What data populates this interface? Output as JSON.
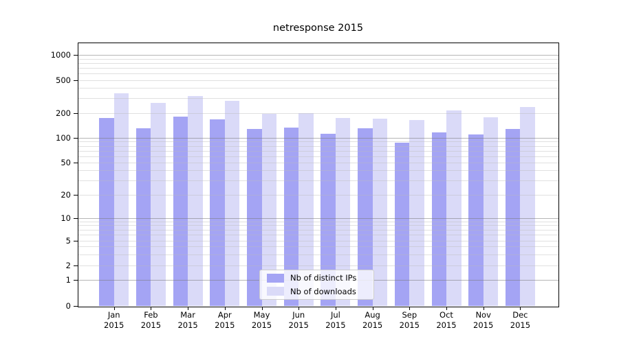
{
  "figure": {
    "title": "netresponse 2015",
    "background": "#ffffff",
    "spine_color": "#000000"
  },
  "legend": {
    "items": [
      {
        "label": "Nb of distinct IPs",
        "color": "#a4a4f4"
      },
      {
        "label": "Nb of downloads",
        "color": "#dadaf8"
      }
    ]
  },
  "y_axis": {
    "tick_labels": [
      "1000",
      "500",
      "200",
      "100",
      "50",
      "20",
      "10",
      "5",
      "2",
      "1",
      "0"
    ],
    "tick_values": [
      1000,
      500,
      200,
      100,
      50,
      20,
      10,
      5,
      2,
      1,
      0
    ],
    "major_gridline_values": [
      1,
      10,
      100,
      1000
    ],
    "minor_gridline_values": [
      2,
      3,
      4,
      5,
      6,
      7,
      8,
      9,
      20,
      30,
      40,
      50,
      60,
      70,
      80,
      90,
      200,
      300,
      400,
      500,
      600,
      700,
      800,
      900
    ]
  },
  "x_axis": {
    "months": [
      "Jan",
      "Feb",
      "Mar",
      "Apr",
      "May",
      "Jun",
      "Jul",
      "Aug",
      "Sep",
      "Oct",
      "Nov",
      "Dec"
    ],
    "year": "2015"
  },
  "chart_data": {
    "type": "bar",
    "title": "netresponse 2015",
    "categories": [
      "Jan 2015",
      "Feb 2015",
      "Mar 2015",
      "Apr 2015",
      "May 2015",
      "Jun 2015",
      "Jul 2015",
      "Aug 2015",
      "Sep 2015",
      "Oct 2015",
      "Nov 2015",
      "Dec 2015"
    ],
    "series": [
      {
        "name": "Nb of distinct IPs",
        "color": "#a4a4f4",
        "values": [
          174,
          131,
          181,
          166,
          127,
          132,
          112,
          131,
          87,
          116,
          110,
          129
        ]
      },
      {
        "name": "Nb of downloads",
        "color": "#dadaf8",
        "values": [
          345,
          266,
          321,
          278,
          196,
          199,
          175,
          169,
          165,
          214,
          177,
          235
        ]
      }
    ],
    "yscale": "symlog",
    "ylim": [
      0,
      1450
    ],
    "y_ticks": [
      0,
      1,
      2,
      5,
      10,
      20,
      50,
      100,
      200,
      500,
      1000
    ],
    "grid": "both",
    "legend_position": "lower-center"
  }
}
